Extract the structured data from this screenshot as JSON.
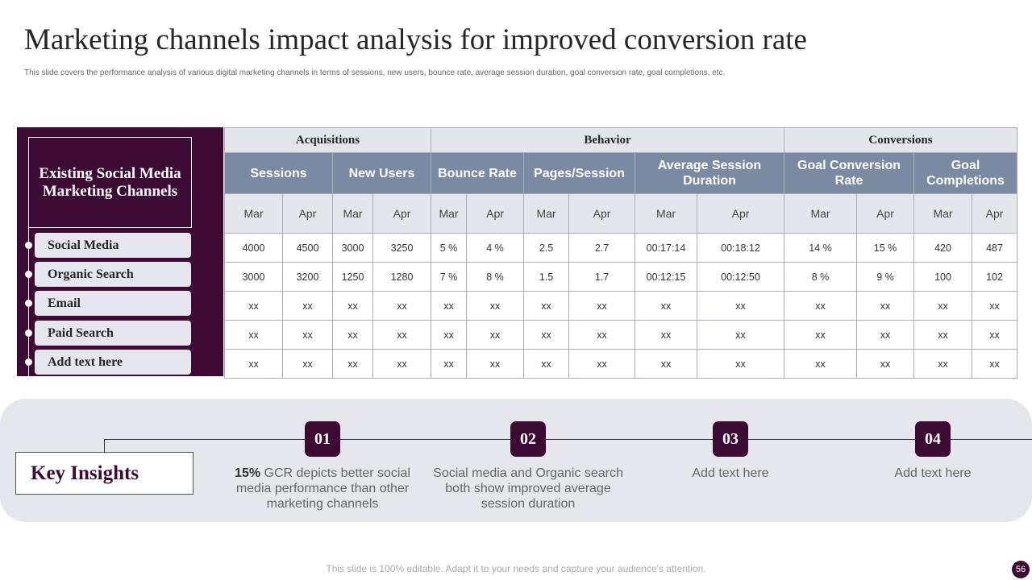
{
  "title": "Marketing channels impact analysis for improved conversion rate",
  "subtitle": "This slide covers the performance analysis of various digital marketing  channels in terms of sessions, new users, bounce rate, average session duration, goal conversion rate, goal completions, etc.",
  "channels_header": "Existing Social Media Marketing Channels",
  "channels": [
    "Social Media",
    "Organic Search",
    "Email",
    "Paid Search",
    "Add text here"
  ],
  "table": {
    "groups": [
      "Acquisitions",
      "Behavior",
      "Conversions"
    ],
    "metrics": [
      "Sessions",
      "New Users",
      "Bounce Rate",
      "Pages/Session",
      "Average Session Duration",
      "Goal Conversion Rate",
      "Goal Completions"
    ],
    "months": [
      "Mar",
      "Apr"
    ],
    "rows": [
      [
        "4000",
        "4500",
        "3000",
        "3250",
        "5 %",
        "4 %",
        "2.5",
        "2.7",
        "00:17:14",
        "00:18:12",
        "14 %",
        "15 %",
        "420",
        "487"
      ],
      [
        "3000",
        "3200",
        "1250",
        "1280",
        "7 %",
        "8 %",
        "1.5",
        "1.7",
        "00:12:15",
        "00:12:50",
        "8 %",
        "9 %",
        "100",
        "102"
      ],
      [
        "xx",
        "xx",
        "xx",
        "xx",
        "xx",
        "xx",
        "xx",
        "xx",
        "xx",
        "xx",
        "xx",
        "xx",
        "xx",
        "xx"
      ],
      [
        "xx",
        "xx",
        "xx",
        "xx",
        "xx",
        "xx",
        "xx",
        "xx",
        "xx",
        "xx",
        "xx",
        "xx",
        "xx",
        "xx"
      ],
      [
        "xx",
        "xx",
        "xx",
        "xx",
        "xx",
        "xx",
        "xx",
        "xx",
        "xx",
        "xx",
        "xx",
        "xx",
        "xx",
        "xx"
      ]
    ]
  },
  "insights": {
    "label": "Key Insights",
    "items": [
      {
        "num": "01",
        "bold": "15%",
        "text": " GCR depicts better social media performance than other marketing channels"
      },
      {
        "num": "02",
        "bold": "",
        "text": "Social media and Organic search both show improved average session duration"
      },
      {
        "num": "03",
        "bold": "",
        "text": "Add text here"
      },
      {
        "num": "04",
        "bold": "",
        "text": "Add text here"
      }
    ]
  },
  "footer": "This slide is 100% editable. Adapt it to your needs and capture your audience's attention.",
  "page_number": "56"
}
